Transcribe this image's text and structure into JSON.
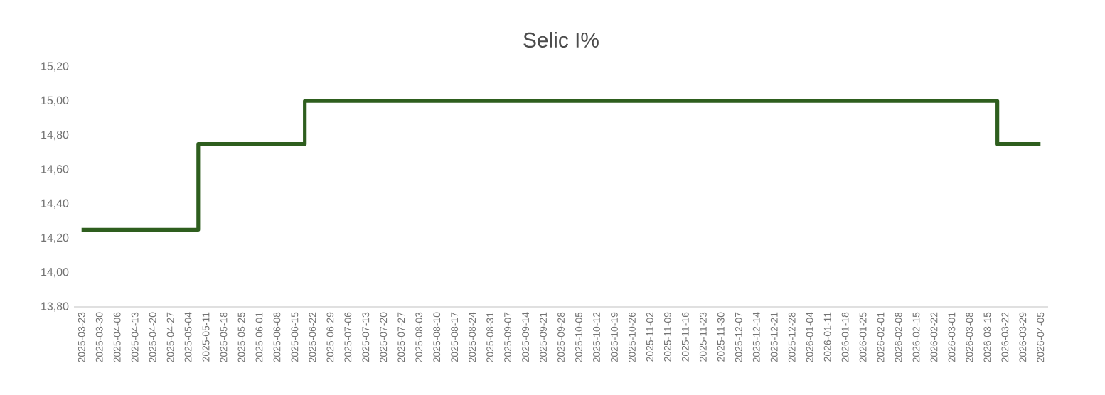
{
  "chart_data": {
    "type": "step",
    "title": "Selic I%",
    "x": [
      "2025-03-23",
      "2025-05-08",
      "2025-06-19",
      "2026-03-19",
      "2026-04-05"
    ],
    "values": [
      14.25,
      14.75,
      15.0,
      14.75,
      14.75
    ],
    "color": "#2e5e1e",
    "xlim": [
      "2025-03-20",
      "2026-04-08"
    ],
    "xticks": [
      "2025-03-23",
      "2025-03-30",
      "2025-04-06",
      "2025-04-13",
      "2025-04-20",
      "2025-04-27",
      "2025-05-04",
      "2025-05-11",
      "2025-05-18",
      "2025-05-25",
      "2025-06-01",
      "2025-06-08",
      "2025-06-15",
      "2025-06-22",
      "2025-06-29",
      "2025-07-06",
      "2025-07-13",
      "2025-07-20",
      "2025-07-27",
      "2025-08-03",
      "2025-08-10",
      "2025-08-17",
      "2025-08-24",
      "2025-08-31",
      "2025-09-07",
      "2025-09-14",
      "2025-09-21",
      "2025-09-28",
      "2025-10-05",
      "2025-10-12",
      "2025-10-19",
      "2025-10-26",
      "2025-11-02",
      "2025-11-09",
      "2025-11-16",
      "2025-11-23",
      "2025-11-30",
      "2025-12-07",
      "2025-12-14",
      "2025-12-21",
      "2025-12-28",
      "2026-01-04",
      "2026-01-11",
      "2026-01-18",
      "2026-01-25",
      "2026-02-01",
      "2026-02-08",
      "2026-02-15",
      "2026-02-22",
      "2026-03-01",
      "2026-03-08",
      "2026-03-15",
      "2026-03-22",
      "2026-03-29",
      "2026-04-05"
    ],
    "ylim": [
      13.8,
      15.2
    ],
    "yticks": [
      {
        "value": 13.8,
        "label": "13,80"
      },
      {
        "value": 14.0,
        "label": "14,00"
      },
      {
        "value": 14.2,
        "label": "14,20"
      },
      {
        "value": 14.4,
        "label": "14,40"
      },
      {
        "value": 14.6,
        "label": "14,60"
      },
      {
        "value": 14.8,
        "label": "14,80"
      },
      {
        "value": 15.0,
        "label": "15,00"
      },
      {
        "value": 15.2,
        "label": "15,20"
      }
    ]
  }
}
